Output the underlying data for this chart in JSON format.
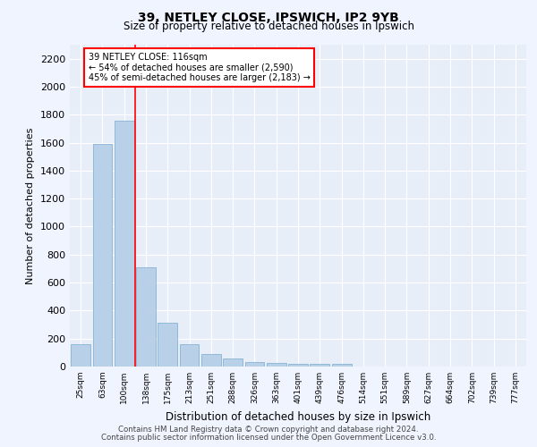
{
  "title1": "39, NETLEY CLOSE, IPSWICH, IP2 9YB",
  "title2": "Size of property relative to detached houses in Ipswich",
  "xlabel": "Distribution of detached houses by size in Ipswich",
  "ylabel": "Number of detached properties",
  "categories": [
    "25sqm",
    "63sqm",
    "100sqm",
    "138sqm",
    "175sqm",
    "213sqm",
    "251sqm",
    "288sqm",
    "326sqm",
    "363sqm",
    "401sqm",
    "439sqm",
    "476sqm",
    "514sqm",
    "551sqm",
    "589sqm",
    "627sqm",
    "664sqm",
    "702sqm",
    "739sqm",
    "777sqm"
  ],
  "values": [
    160,
    1590,
    1760,
    710,
    310,
    160,
    90,
    55,
    35,
    25,
    22,
    22,
    18,
    0,
    0,
    0,
    0,
    0,
    0,
    0,
    0
  ],
  "bar_color": "#b8d0e8",
  "bar_edge_color": "#7aaad0",
  "red_line_x": 2.5,
  "annotation_text_line1": "39 NETLEY CLOSE: 116sqm",
  "annotation_text_line2": "← 54% of detached houses are smaller (2,590)",
  "annotation_text_line3": "45% of semi-detached houses are larger (2,183) →",
  "ylim": [
    0,
    2300
  ],
  "yticks": [
    0,
    200,
    400,
    600,
    800,
    1000,
    1200,
    1400,
    1600,
    1800,
    2000,
    2200
  ],
  "footer1": "Contains HM Land Registry data © Crown copyright and database right 2024.",
  "footer2": "Contains public sector information licensed under the Open Government Licence v3.0.",
  "bg_color": "#f0f4ff",
  "plot_bg_color": "#e8eef8"
}
